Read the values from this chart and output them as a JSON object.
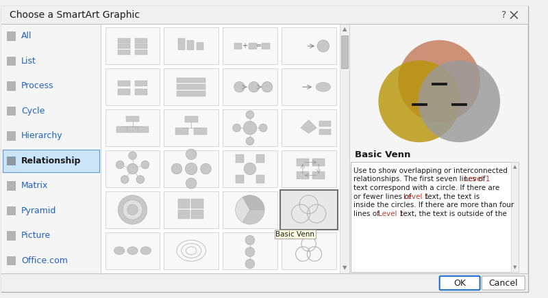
{
  "title": "Choose a SmartArt Graphic",
  "bg_color": "#f0f0f0",
  "sidebar_items": [
    "All",
    "List",
    "Process",
    "Cycle",
    "Hierarchy",
    "Relationship",
    "Matrix",
    "Pyramid",
    "Picture",
    "Office.com"
  ],
  "selected_item_index": 5,
  "venn_colors": [
    "#c47a5a",
    "#b8960a",
    "#9a9a9a"
  ],
  "venn_alpha": 0.82,
  "venn_title": "Basic Venn",
  "venn_desc_lines": [
    "Use to show overlapping or interconnected",
    "relationships. The first seven lines of Level 1",
    "text correspond with a circle. If there are",
    "or fewer lines of Level 1 text, the text is",
    "inside the circles. If there are more than four",
    "lines of Level 1 text, the text is outside of the"
  ],
  "ok_btn_color": "#1e70cc",
  "gray_shape": "#c8c8c8",
  "gray_edge": "#aaaaaa",
  "gray_light": "#e0e0e0",
  "white": "#ffffff",
  "sidebar_bg": "#f5f5f5",
  "content_bg": "#ffffff",
  "right_bg": "#f0f0f0",
  "selected_bg": "#cce4f7",
  "selected_edge": "#5b9bd5"
}
